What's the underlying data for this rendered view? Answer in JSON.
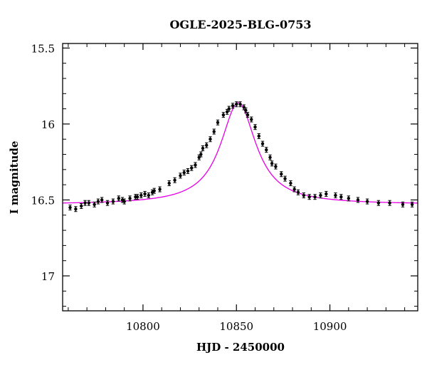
{
  "chart_data": {
    "type": "scatter",
    "title": "OGLE-2025-BLG-0753",
    "xlabel": "HJD - 2450000",
    "ylabel": "I magnitude",
    "xlim": [
      10757,
      10947
    ],
    "ylim": [
      17.23,
      15.47
    ],
    "y_inverted": true,
    "x_ticks": [
      10800,
      10850,
      10900
    ],
    "y_ticks": [
      15.5,
      16,
      16.5,
      17
    ],
    "y_tick_labels": [
      "15.5",
      "16",
      "16.5",
      "17"
    ],
    "grid": false,
    "series": [
      {
        "kind": "points",
        "color": "#000000",
        "x": [
          10761,
          10764,
          10767,
          10769,
          10771,
          10774,
          10776,
          10778,
          10781,
          10784,
          10787,
          10789,
          10790,
          10793,
          10796,
          10797,
          10799,
          10801,
          10803,
          10805,
          10806,
          10809,
          10814,
          10817,
          10820,
          10822,
          10824,
          10826,
          10828,
          10830,
          10831,
          10832,
          10834,
          10836,
          10838,
          10840,
          10843,
          10845,
          10846,
          10848,
          10850,
          10852,
          10854,
          10855,
          10856,
          10858,
          10860,
          10862,
          10864,
          10866,
          10868,
          10869,
          10871,
          10874,
          10876,
          10879,
          10881,
          10883,
          10886,
          10889,
          10892,
          10895,
          10898,
          10903,
          10906,
          10910,
          10915,
          10920,
          10926,
          10932,
          10939,
          10944
        ],
        "y": [
          16.55,
          16.56,
          16.54,
          16.52,
          16.52,
          16.53,
          16.51,
          16.5,
          16.52,
          16.51,
          16.49,
          16.5,
          16.51,
          16.49,
          16.48,
          16.48,
          16.47,
          16.46,
          16.47,
          16.45,
          16.44,
          16.43,
          16.39,
          16.37,
          16.34,
          16.32,
          16.31,
          16.29,
          16.27,
          16.22,
          16.2,
          16.16,
          16.14,
          16.1,
          16.05,
          15.99,
          15.94,
          15.92,
          15.9,
          15.88,
          15.87,
          15.87,
          15.89,
          15.91,
          15.94,
          15.97,
          16.02,
          16.08,
          16.13,
          16.17,
          16.22,
          16.26,
          16.28,
          16.33,
          16.36,
          16.39,
          16.43,
          16.45,
          16.47,
          16.48,
          16.48,
          16.47,
          16.46,
          16.47,
          16.48,
          16.49,
          16.5,
          16.51,
          16.52,
          16.52,
          16.53,
          16.53
        ]
      },
      {
        "kind": "model-line",
        "color": "#e600e6",
        "t0": 10851,
        "baseline": 16.53,
        "amplitude": 0.67,
        "width": 11.5
      }
    ]
  }
}
